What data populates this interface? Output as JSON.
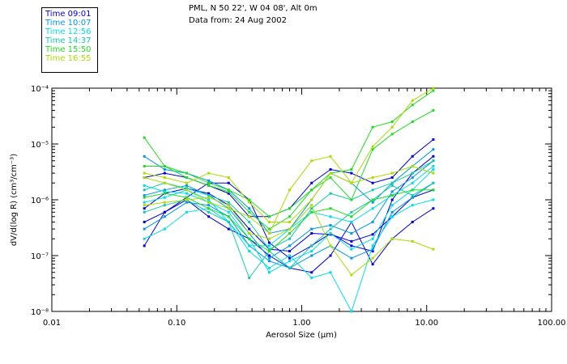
{
  "header": {
    "line1": "PML, N 50 22', W 04 08', Alt 0m",
    "line2": "Data from: 24 Aug 2002"
  },
  "legend": [
    {
      "label": "Time 09:01",
      "color": "#0000dd"
    },
    {
      "label": "Time 10:07",
      "color": "#0099e6"
    },
    {
      "label": "Time 12:56",
      "color": "#00dde6"
    },
    {
      "label": "Time 14:37",
      "color": "#11ccaa"
    },
    {
      "label": "Time 15:50",
      "color": "#22dd22"
    },
    {
      "label": "Time 16:55",
      "color": "#aadd00"
    }
  ],
  "chart_data": {
    "type": "line",
    "xlabel": "Aerosol Size (µm)",
    "ylabel": "dV/d(log R) (cm³/cm⁻³)",
    "x_scale": "log",
    "y_scale": "log",
    "xlim": [
      0.01,
      100.0
    ],
    "ylim": [
      1e-08,
      0.0001
    ],
    "x_ticks": [
      "0.01",
      "0.10",
      "1.00",
      "10.00",
      "100.00"
    ],
    "y_ticks": [
      "10⁻⁸",
      "10⁻⁷",
      "10⁻⁶",
      "10⁻⁵",
      "10⁻⁴"
    ],
    "grid": false,
    "legend_position": "top-left",
    "x": [
      0.055,
      0.08,
      0.12,
      0.18,
      0.26,
      0.38,
      0.55,
      0.8,
      1.2,
      1.7,
      2.5,
      3.7,
      5.3,
      7.7,
      11.3
    ],
    "series": [
      {
        "time": "09:01",
        "values": [
          7e-07,
          1.3e-06,
          1.6e-06,
          1.3e-06,
          8e-07,
          3e-07,
          1.3e-07,
          1.2e-07,
          2.5e-07,
          2.4e-07,
          1.8e-07,
          2.4e-07,
          5e-07,
          1.1e-06,
          1.5e-06
        ]
      },
      {
        "time": "09:01",
        "values": [
          2.5e-06,
          3e-06,
          2.5e-06,
          1.8e-06,
          1.3e-06,
          5e-07,
          5e-07,
          7e-07,
          2e-06,
          3.5e-06,
          3e-06,
          2e-06,
          2.5e-06,
          6e-06,
          1.2e-05
        ]
      },
      {
        "time": "09:01",
        "values": [
          1.5e-07,
          6e-07,
          1.1e-06,
          2e-06,
          2e-06,
          1e-06,
          1.7e-07,
          9e-08,
          1.5e-07,
          2.5e-07,
          1.5e-07,
          1.2e-07,
          1e-06,
          3e-06,
          6e-06
        ]
      },
      {
        "time": "09:01",
        "values": [
          4e-07,
          6e-07,
          1e-06,
          5e-07,
          3e-07,
          2e-07,
          1e-07,
          6e-08,
          5e-08,
          1e-07,
          4e-07,
          7e-08,
          2e-07,
          4e-07,
          7e-07
        ]
      },
      {
        "time": "10:07",
        "values": [
          6e-06,
          3.5e-06,
          3e-06,
          2.2e-06,
          1.5e-06,
          7e-07,
          2.5e-07,
          3e-07,
          1e-06,
          3e-06,
          2e-06,
          9e-07,
          2e-06,
          4e-06,
          8e-06
        ]
      },
      {
        "time": "10:07",
        "values": [
          1.2e-06,
          1.5e-06,
          1.8e-06,
          1.2e-06,
          7e-07,
          2.5e-07,
          9e-08,
          1.5e-07,
          3e-07,
          3.5e-07,
          2.5e-07,
          4e-07,
          1.4e-06,
          2.5e-06,
          5e-06
        ]
      },
      {
        "time": "10:07",
        "values": [
          3e-07,
          5e-07,
          9e-07,
          8e-07,
          5e-07,
          1.5e-07,
          8e-08,
          6e-08,
          1e-07,
          1.5e-07,
          9e-08,
          1.3e-07,
          6e-07,
          1.1e-06,
          2e-06
        ]
      },
      {
        "time": "12:56",
        "values": [
          1.8e-06,
          1.4e-06,
          1.3e-06,
          9e-07,
          6e-07,
          2e-07,
          5e-08,
          8e-08,
          1.2e-07,
          2.5e-07,
          1.3e-07,
          2e-07,
          8e-07,
          1.5e-06,
          3.5e-06
        ]
      },
      {
        "time": "12:56",
        "values": [
          9e-07,
          1.1e-06,
          1.5e-06,
          1e-06,
          4e-07,
          1.5e-07,
          1.5e-07,
          3e-07,
          6e-07,
          5e-07,
          4e-07,
          7e-07,
          1.2e-06,
          2e-06,
          4e-06
        ]
      },
      {
        "time": "12:56",
        "values": [
          2e-07,
          3e-07,
          6e-07,
          7e-07,
          4e-07,
          1.2e-07,
          6e-08,
          1e-07,
          4e-08,
          5e-08,
          1e-08,
          1.5e-07,
          5e-07,
          8e-07,
          1e-06
        ]
      },
      {
        "time": "14:37",
        "values": [
          1.5e-06,
          2e-06,
          1.6e-06,
          1.2e-06,
          9e-07,
          4e-07,
          1.3e-07,
          2e-07,
          7e-07,
          1.3e-06,
          1e-06,
          1.5e-06,
          2e-06,
          3e-06,
          5e-06
        ]
      },
      {
        "time": "14:37",
        "values": [
          6e-07,
          8e-07,
          1e-06,
          6e-07,
          4e-07,
          4e-08,
          1.2e-07,
          6e-08,
          1.5e-07,
          3e-07,
          6e-07,
          1e-06,
          1.8e-06,
          1.2e-06,
          2e-06
        ]
      },
      {
        "time": "15:50",
        "values": [
          1.3e-05,
          4e-06,
          2.5e-06,
          1.8e-06,
          1.4e-06,
          6e-07,
          3e-07,
          5e-07,
          1.5e-06,
          3e-06,
          3.5e-06,
          2e-05,
          2.5e-05,
          5e-05,
          9e-05
        ]
      },
      {
        "time": "15:50",
        "values": [
          4e-06,
          4e-06,
          3e-06,
          2e-06,
          1.5e-06,
          1e-06,
          5e-07,
          7e-07,
          1.5e-06,
          2.5e-06,
          1e-06,
          8e-06,
          1.5e-05,
          2.5e-05,
          4e-05
        ]
      },
      {
        "time": "15:50",
        "values": [
          1.1e-06,
          1.3e-06,
          1.1e-06,
          7e-07,
          5e-07,
          2e-07,
          1.2e-07,
          2.5e-07,
          6e-07,
          7e-07,
          5e-07,
          1e-06,
          1.2e-06,
          1.5e-06,
          1.5e-06
        ]
      },
      {
        "time": "16:55",
        "values": [
          2.5e-06,
          2e-06,
          1.5e-06,
          9e-07,
          7e-07,
          5e-07,
          2.5e-07,
          1.5e-06,
          5e-06,
          6e-06,
          2e-06,
          9e-06,
          2e-05,
          6e-05,
          0.0001
        ]
      },
      {
        "time": "16:55",
        "values": [
          8e-07,
          9e-07,
          1e-06,
          1.1e-06,
          8e-07,
          2.5e-07,
          2e-07,
          3e-07,
          8e-07,
          1.5e-07,
          4.5e-08,
          9e-08,
          2e-07,
          1.8e-07,
          1.3e-07
        ]
      },
      {
        "time": "16:55",
        "values": [
          3e-06,
          2.5e-06,
          2e-06,
          3e-06,
          2.5e-06,
          9e-07,
          4e-07,
          4e-07,
          1e-06,
          3e-06,
          2e-06,
          2.5e-06,
          3e-06,
          4e-06,
          3e-06
        ]
      }
    ]
  }
}
